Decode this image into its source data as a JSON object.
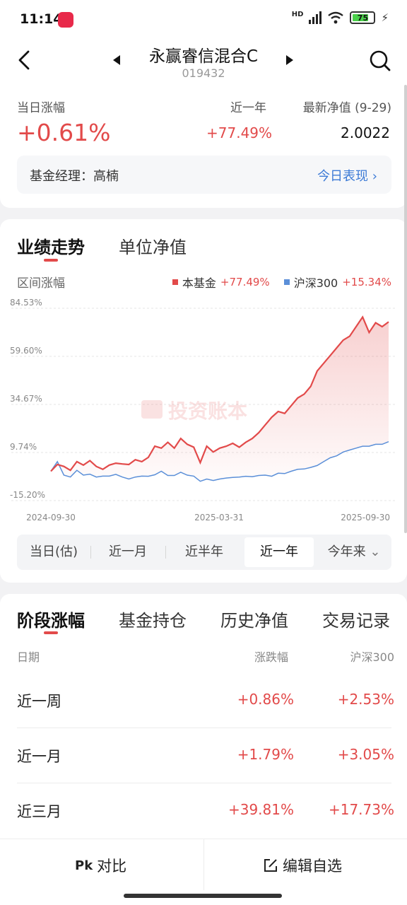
{
  "status": {
    "time": "11:14",
    "hd": "HD",
    "battery": "75"
  },
  "nav": {
    "fund_name": "永赢睿信混合C",
    "fund_code": "019432"
  },
  "summary": {
    "today_change_label": "当日涨幅",
    "today_change_value": "+0.61%",
    "year_label": "近一年",
    "year_value": "+77.49%",
    "nav_label": "最新净值 (9-29)",
    "nav_value": "2.0022",
    "manager_text": "基金经理：高楠",
    "today_link": "今日表现"
  },
  "chart_tabs": [
    {
      "label": "业绩走势"
    },
    {
      "label": "单位净值"
    }
  ],
  "chart_header": {
    "range_label": "区间涨幅",
    "legend_fund_name": "本基金",
    "legend_fund_value": "+77.49%",
    "legend_index_name": "沪深300",
    "legend_index_value": "+15.34%"
  },
  "watermark": "投资账本",
  "colors": {
    "fund": "#e24a4a",
    "index": "#5b8fd8",
    "accent_blue": "#3d7bd6"
  },
  "chart_data": {
    "type": "line",
    "y_ticks": [
      "84.53%",
      "59.60%",
      "34.67%",
      "9.74%",
      "-15.20%"
    ],
    "y_tick_values": [
      84.53,
      59.6,
      34.67,
      9.74,
      -15.2
    ],
    "ylim": [
      -15.2,
      84.53
    ],
    "x_ticks": [
      "2024-09-30",
      "2025-03-31",
      "2025-09-30"
    ],
    "grid": true,
    "series": [
      {
        "name": "本基金",
        "color": "#e24a4a",
        "values": [
          0,
          3.5,
          2.5,
          0.5,
          5,
          3.2,
          5.5,
          2.5,
          1,
          3.2,
          4.2,
          3.8,
          3.5,
          6,
          5,
          7.2,
          13,
          12,
          15,
          12,
          17,
          14,
          12.5,
          4.5,
          13,
          10,
          12,
          13,
          14.5,
          12.5,
          15,
          17,
          20,
          24,
          28,
          31,
          30,
          34,
          38,
          40,
          44,
          52,
          56,
          60,
          64,
          68,
          70,
          75,
          80,
          72,
          77,
          75,
          77.49
        ]
      },
      {
        "name": "沪深300",
        "color": "#5b8fd8",
        "values": [
          0,
          5,
          -2,
          -3,
          0.5,
          -2,
          -1.5,
          -3,
          -2.5,
          -2.5,
          -1.6,
          -3,
          -4,
          -3,
          -2.5,
          -2.6,
          -1.8,
          0,
          -2.2,
          -2.2,
          -0.5,
          -2,
          -2.5,
          -5.2,
          -4,
          -4.8,
          -4,
          -3.5,
          -3.2,
          -3,
          -2.6,
          -2.8,
          -2.2,
          -2,
          -2.6,
          -1,
          -1.2,
          0,
          1,
          1.2,
          2,
          3,
          5,
          7,
          8,
          10,
          11,
          12,
          13,
          13,
          14,
          14,
          15.34
        ]
      }
    ]
  },
  "periods": [
    {
      "label": "当日(估)"
    },
    {
      "label": "近一月"
    },
    {
      "label": "近半年"
    },
    {
      "label": "近一年"
    },
    {
      "label": "今年来"
    }
  ],
  "stage_tabs": [
    {
      "label": "阶段涨幅"
    },
    {
      "label": "基金持仓"
    },
    {
      "label": "历史净值"
    },
    {
      "label": "交易记录"
    }
  ],
  "stage_headers": {
    "date": "日期",
    "change": "涨跌幅",
    "index": "沪深300"
  },
  "stage_rows": [
    {
      "label": "近一周",
      "change": "+0.86%",
      "index": "+2.53%"
    },
    {
      "label": "近一月",
      "change": "+1.79%",
      "index": "+3.05%"
    },
    {
      "label": "近三月",
      "change": "+39.81%",
      "index": "+17.73%"
    }
  ],
  "bottom": {
    "compare": "对比",
    "edit": "编辑自选"
  }
}
